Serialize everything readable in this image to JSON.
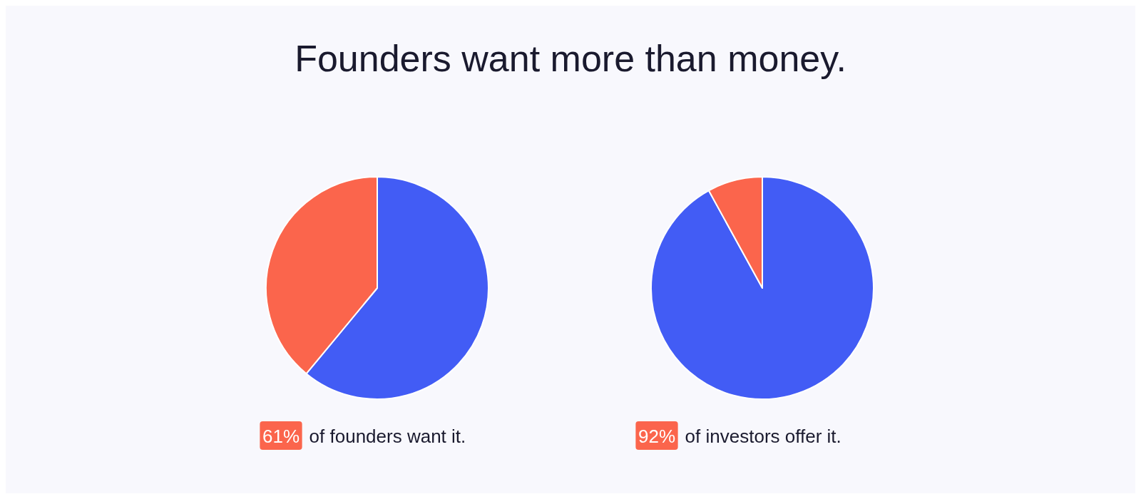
{
  "chart_data": [
    {
      "type": "pie",
      "title": "Founders want more than money.",
      "categories": [
        null,
        null
      ],
      "values": [
        61,
        39
      ],
      "colors": [
        "#425cf5",
        "#fb654c"
      ],
      "annotations": [
        "61% of founders want it."
      ]
    },
    {
      "type": "pie",
      "categories": [
        null,
        null
      ],
      "values": [
        92,
        8
      ],
      "colors": [
        "#425cf5",
        "#fb654c"
      ],
      "annotations": [
        "92% of investors offer it."
      ]
    }
  ]
}
